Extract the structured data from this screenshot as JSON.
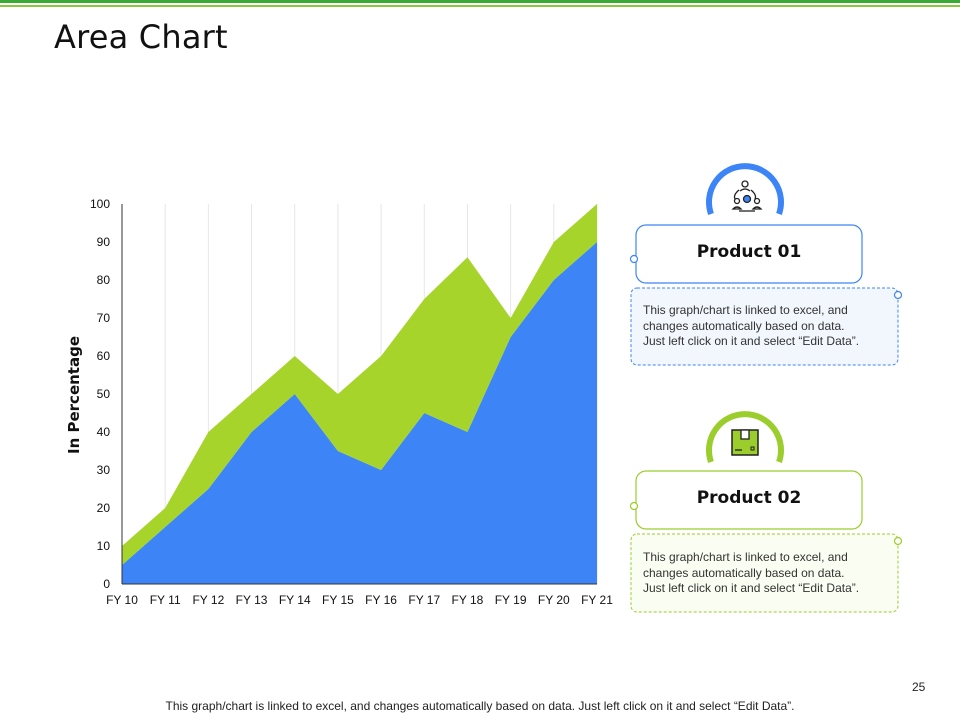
{
  "slide": {
    "title": "Area Chart",
    "footer": "This graph/chart is linked to excel, and changes automatically based on data. Just left click on it and select “Edit Data”.",
    "page_number": "25"
  },
  "products": [
    {
      "title": "Product 01",
      "text_lines": [
        "This graph/chart is linked to excel, and",
        "changes automatically based on data.",
        "Just left click on it and select “Edit Data”."
      ],
      "accent": "#3d85f6",
      "icon": "team-network-icon"
    },
    {
      "title": "Product 02",
      "text_lines": [
        "This graph/chart is linked to excel, and",
        "changes automatically based on data.",
        "Just left click on it and select “Edit Data”."
      ],
      "accent": "#9bcd2c",
      "icon": "package-box-icon"
    }
  ],
  "chart_data": {
    "type": "area",
    "stacked": true,
    "categories": [
      "FY 10",
      "FY 11",
      "FY 12",
      "FY 13",
      "FY 14",
      "FY 15",
      "FY 16",
      "FY 17",
      "FY 18",
      "FY 19",
      "FY 20",
      "FY 21"
    ],
    "series": [
      {
        "values": [
          5,
          15,
          25,
          40,
          50,
          35,
          30,
          45,
          40,
          65,
          80,
          90
        ],
        "color": "#3d85f6"
      },
      {
        "values": [
          5,
          5,
          15,
          10,
          10,
          15,
          30,
          30,
          46,
          5,
          10,
          10
        ],
        "color": "#a6d42b"
      }
    ],
    "ylabel": "In Percentage",
    "ylim": [
      0,
      100
    ],
    "yticks": [
      "0",
      "10",
      "20",
      "30",
      "40",
      "50",
      "60",
      "70",
      "80",
      "90",
      "100"
    ],
    "grid": "vertical"
  }
}
